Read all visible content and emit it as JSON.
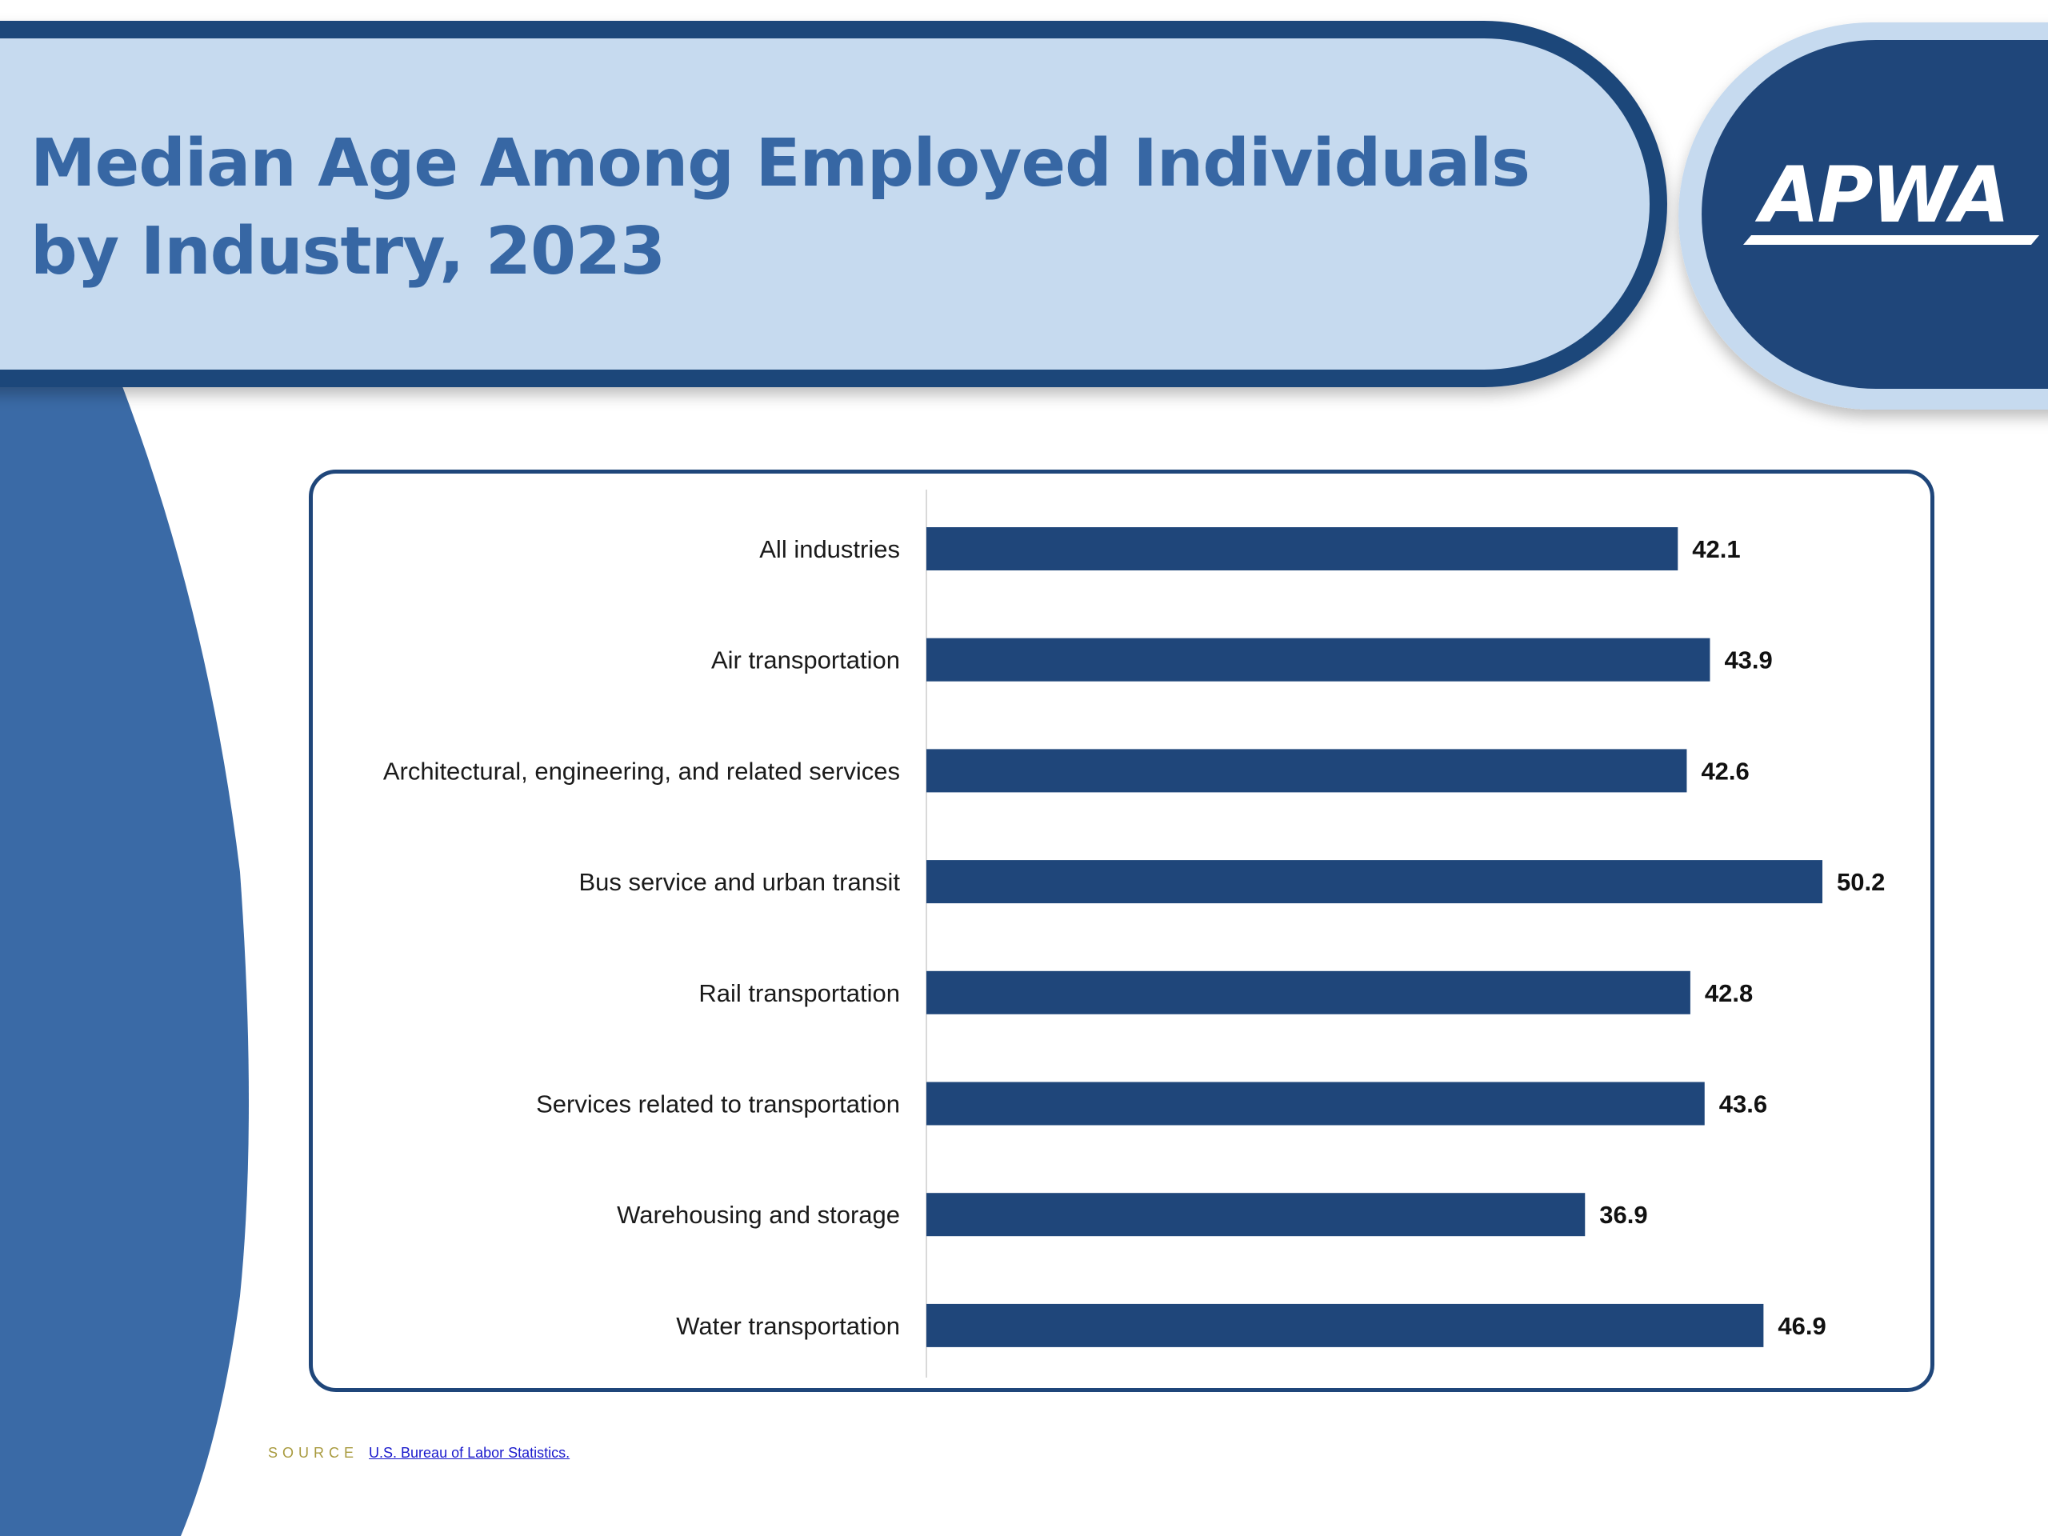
{
  "title": "Median Age Among Employed Individuals by Industry, 2023",
  "logo": {
    "text": "APWA"
  },
  "source": {
    "label": "SOURCE",
    "link_text": "U.S. Bureau of Labor Statistics."
  },
  "colors": {
    "bar": "#1f467a",
    "title": "#3767a4",
    "banner_fill": "#c6daef",
    "banner_border": "#1f467a",
    "side_shape": "#3a6aa6"
  },
  "chart_data": {
    "type": "bar",
    "orientation": "horizontal",
    "categories": [
      "All industries",
      "Air transportation",
      "Architectural, engineering, and related services",
      "Bus service and urban transit",
      "Rail transportation",
      "Services related to transportation",
      "Warehousing and storage",
      "Water transportation"
    ],
    "values": [
      42.1,
      43.9,
      42.6,
      50.2,
      42.8,
      43.6,
      36.9,
      46.9
    ],
    "data_labels": [
      "42.1",
      "43.9",
      "42.6",
      "50.2",
      "42.8",
      "43.6",
      "36.9",
      "46.9"
    ],
    "xlim": [
      0,
      50.2
    ],
    "grid": false,
    "legend": "none"
  }
}
